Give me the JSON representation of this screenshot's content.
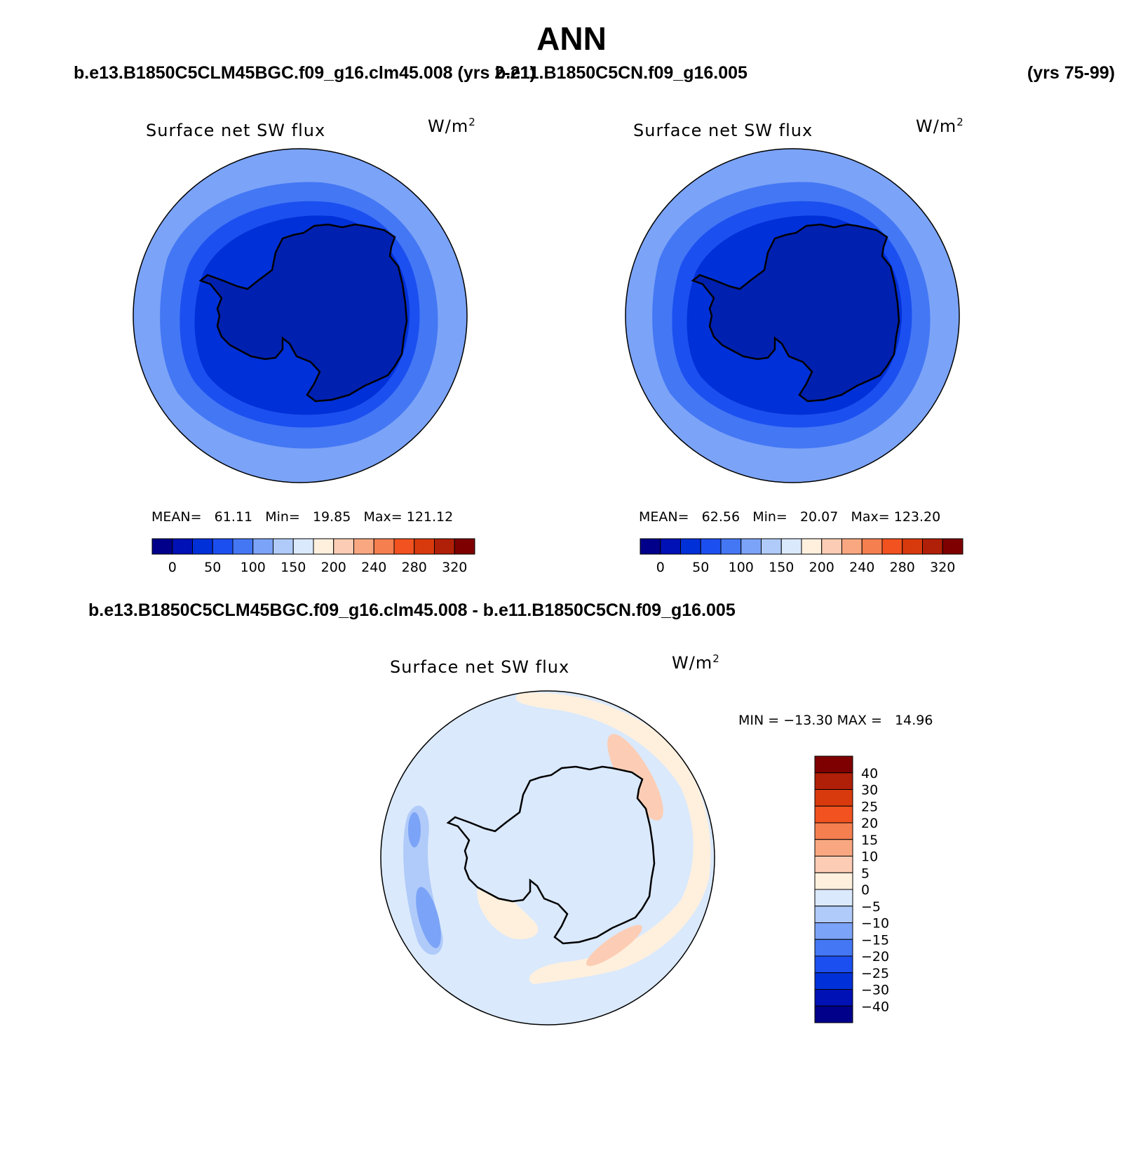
{
  "title": "ANN",
  "case1": {
    "name": "b.e13.B1850C5CLM45BGC.f09_g16.clm45.008",
    "years": "(yrs 2-21)"
  },
  "case2": {
    "name": "b.e11.B1850C5CN.f09_g16.005",
    "years": "(yrs 75-99)"
  },
  "diff_title": "b.e13.B1850C5CLM45BGC.f09_g16.clm45.008 - b.e11.B1850C5CN.f09_g16.005",
  "panels": [
    {
      "variable": "Surface net SW flux",
      "unit_base": "W/m",
      "unit_exp": "2",
      "mean_label": "MEAN=",
      "mean": "61.11",
      "min_label": "Min=",
      "min": "19.85",
      "max_label": "Max=",
      "max": "121.12"
    },
    {
      "variable": "Surface net SW flux",
      "unit_base": "W/m",
      "unit_exp": "2",
      "mean_label": "MEAN=",
      "mean": "62.56",
      "min_label": "Min=",
      "min": "20.07",
      "max_label": "Max=",
      "max": "123.20"
    },
    {
      "variable": "Surface net SW flux",
      "unit_base": "W/m",
      "unit_exp": "2",
      "min_label": "MIN =",
      "min": "−13.30",
      "max_label": "MAX =",
      "max": "14.96"
    }
  ],
  "abs_colorbar": {
    "colors": [
      "#00008a",
      "#0011b5",
      "#0030d8",
      "#1c4ff0",
      "#4477f4",
      "#7ba3f7",
      "#b0cbf9",
      "#dae9fc",
      "#fff0de",
      "#fccdb4",
      "#f9a780",
      "#f57f4f",
      "#f1521f",
      "#d93a0d",
      "#b01f07",
      "#7f0000"
    ],
    "labels": [
      "0",
      "50",
      "100",
      "150",
      "200",
      "240",
      "280",
      "320"
    ]
  },
  "diff_colorbar": {
    "colors": [
      "#7f0000",
      "#b01f07",
      "#d93a0d",
      "#f1521f",
      "#f57f4f",
      "#f9a780",
      "#fccdb4",
      "#fff0de",
      "#dae9fc",
      "#b0cbf9",
      "#7ba3f7",
      "#4477f4",
      "#1c4ff0",
      "#0030d8",
      "#0011b5",
      "#00008a"
    ],
    "labels": [
      "40",
      "30",
      "25",
      "20",
      "15",
      "10",
      "5",
      "0",
      "−5",
      "−10",
      "−15",
      "−20",
      "−25",
      "−30",
      "−40"
    ]
  },
  "colors": {
    "land_abs": "#0020b0",
    "ocean_abs_outer": "#7ba3f7",
    "ocean_abs_mid": "#4477f4",
    "ocean_abs_inner": "#1c4ff0",
    "ocean_abs_ice": "#0030d8",
    "diff_base": "#dae9fc",
    "diff_pos": "#fff0de",
    "diff_pos2": "#fccdb4",
    "diff_neg": "#b0cbf9",
    "diff_neg2": "#7ba3f7"
  }
}
